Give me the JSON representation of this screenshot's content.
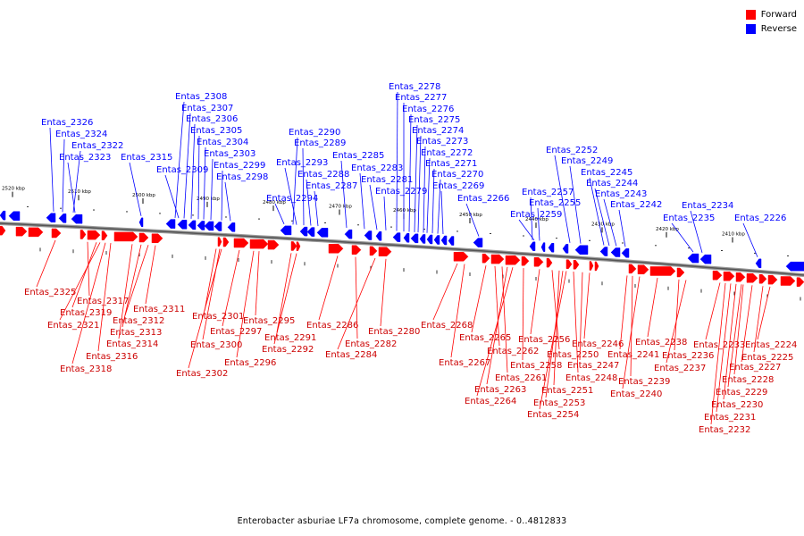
{
  "legend": {
    "forward_label": "Forward",
    "forward_color": "#ff0000",
    "reverse_label": "Reverse",
    "reverse_color": "#0000ff"
  },
  "caption": "Enterobacter asburiae LF7a chromosome, complete genome. - 0..4812833",
  "scale_ticks": [
    "2520 kbp",
    "2510 kbp",
    "2500 kbp",
    "2490 kbp",
    "2480 kbp",
    "2470 kbp",
    "2460 kbp",
    "2450 kbp",
    "2440 kbp",
    "2430 kbp",
    "2420 kbp",
    "2410 kbp"
  ],
  "reverse_genes": [
    "Entas_2326",
    "Entas_2324",
    "Entas_2322",
    "Entas_2323",
    "Entas_2315",
    "Entas_2308",
    "Entas_2307",
    "Entas_2306",
    "Entas_2305",
    "Entas_2304",
    "Entas_2303",
    "Entas_2309",
    "Entas_2299",
    "Entas_2298",
    "Entas_2290",
    "Entas_2289",
    "Entas_2293",
    "Entas_2288",
    "Entas_2287",
    "Entas_2294",
    "Entas_2285",
    "Entas_2283",
    "Entas_2281",
    "Entas_2279",
    "Entas_2278",
    "Entas_2277",
    "Entas_2276",
    "Entas_2275",
    "Entas_2274",
    "Entas_2273",
    "Entas_2272",
    "Entas_2271",
    "Entas_2270",
    "Entas_2269",
    "Entas_2266",
    "Entas_2252",
    "Entas_2249",
    "Entas_2257",
    "Entas_2255",
    "Entas_2259",
    "Entas_2245",
    "Entas_2244",
    "Entas_2243",
    "Entas_2242",
    "Entas_2234",
    "Entas_2235",
    "Entas_2226"
  ],
  "forward_genes": [
    "Entas_2325",
    "Entas_2317",
    "Entas_2319",
    "Entas_2321",
    "Entas_2311",
    "Entas_2312",
    "Entas_2313",
    "Entas_2314",
    "Entas_2316",
    "Entas_2318",
    "Entas_2301",
    "Entas_2297",
    "Entas_2300",
    "Entas_2302",
    "Entas_2295",
    "Entas_2296",
    "Entas_2291",
    "Entas_2292",
    "Entas_2286",
    "Entas_2282",
    "Entas_2284",
    "Entas_2280",
    "Entas_2268",
    "Entas_2267",
    "Entas_2265",
    "Entas_2262",
    "Entas_2261",
    "Entas_2263",
    "Entas_2264",
    "Entas_2258",
    "Entas_2256",
    "Entas_2250",
    "Entas_2251",
    "Entas_2253",
    "Entas_2254",
    "Entas_2246",
    "Entas_2247",
    "Entas_2248",
    "Entas_2241",
    "Entas_2239",
    "Entas_2240",
    "Entas_2238",
    "Entas_2236",
    "Entas_2237",
    "Entas_2233",
    "Entas_2227",
    "Entas_2228",
    "Entas_2229",
    "Entas_2230",
    "Entas_2231",
    "Entas_2232",
    "Entas_2224",
    "Entas_2225"
  ]
}
